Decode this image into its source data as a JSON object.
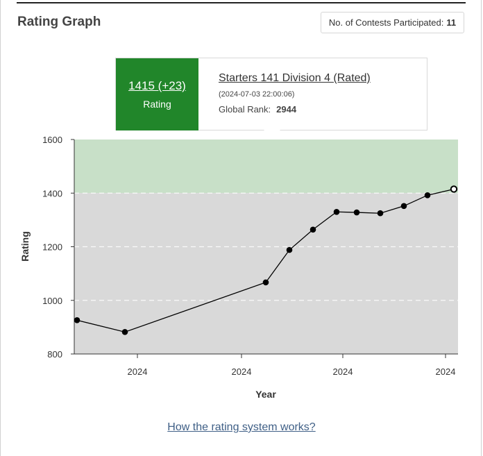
{
  "header": {
    "title": "Rating Graph",
    "contests_label": "No. of Contests Participated:",
    "contests_value": "11"
  },
  "tooltip": {
    "score": "1415 (+23)",
    "score_label": "Rating",
    "contest": "Starters 141 Division 4 (Rated)",
    "datetime": "(2024-07-03 22:00:06)",
    "rank_label": "Global Rank:",
    "rank_value": "2944"
  },
  "footer": {
    "link": "How the rating system works?"
  },
  "chart_data": {
    "type": "line",
    "xlabel": "Year",
    "ylabel": "Rating",
    "ylim": [
      800,
      1600
    ],
    "yticks": [
      800,
      1000,
      1200,
      1400,
      1600
    ],
    "xtick_labels": [
      "2024",
      "2024",
      "2024",
      "2024"
    ],
    "bands": [
      {
        "from": 1400,
        "to": 1600,
        "color": "#c8e0c8"
      },
      {
        "from": 800,
        "to": 1400,
        "color": "#d9d9d9"
      }
    ],
    "grid": true,
    "series": [
      {
        "values": [
          926,
          882,
          1067,
          1188,
          1264,
          1330,
          1328,
          1325,
          1352,
          1392,
          1415
        ]
      }
    ],
    "highlight_index": 10
  },
  "colors": {
    "accent": "#21862a",
    "line": "#000000"
  }
}
